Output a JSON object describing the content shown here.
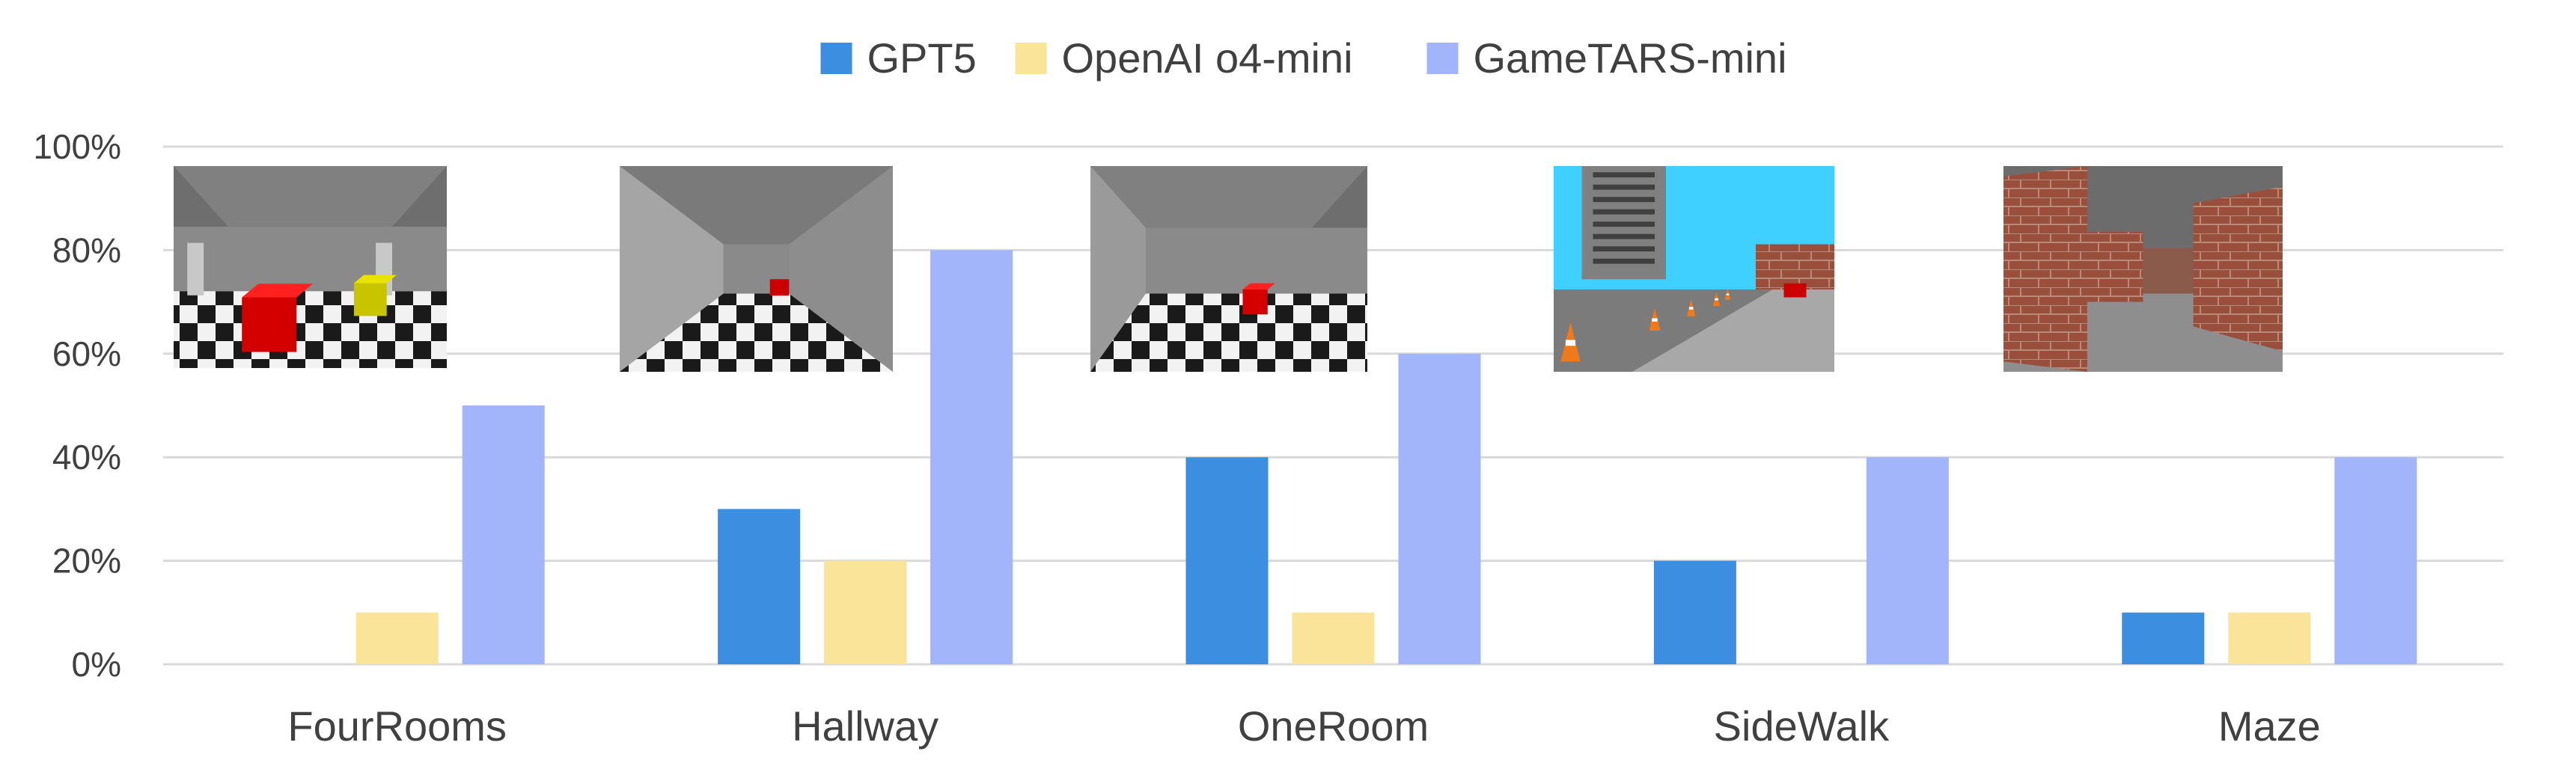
{
  "chart_data": {
    "type": "bar",
    "title": "",
    "xlabel": "",
    "ylabel": "",
    "categories": [
      "FourRooms",
      "Hallway",
      "OneRoom",
      "SideWalk",
      "Maze"
    ],
    "series": [
      {
        "name": "GPT5",
        "values": [
          0,
          30,
          40,
          20,
          10
        ],
        "color": "#3b8ee0"
      },
      {
        "name": "OpenAI o4-mini",
        "values": [
          10,
          20,
          10,
          0,
          10
        ],
        "color": "#f9e49a"
      },
      {
        "name": "GameTARS-mini",
        "values": [
          50,
          80,
          60,
          40,
          40
        ],
        "color": "#a2b5fb"
      }
    ],
    "ylim": [
      0,
      100
    ],
    "yticks": [
      0,
      20,
      40,
      60,
      80,
      100
    ],
    "ytick_labels": [
      "0%",
      "20%",
      "40%",
      "60%",
      "80%",
      "100%"
    ],
    "grid": true,
    "legend_position": "top-center",
    "thumbnails": [
      {
        "category": "FourRooms",
        "scene": "four-rooms",
        "description_icon": "room-scene-icon"
      },
      {
        "category": "Hallway",
        "scene": "hallway",
        "description_icon": "hallway-scene-icon"
      },
      {
        "category": "OneRoom",
        "scene": "one-room",
        "description_icon": "room-scene-icon"
      },
      {
        "category": "SideWalk",
        "scene": "sidewalk",
        "description_icon": "sidewalk-scene-icon"
      },
      {
        "category": "Maze",
        "scene": "maze",
        "description_icon": "maze-scene-icon"
      }
    ],
    "colors": {
      "grid": "#d9d9d9",
      "text": "#404040"
    }
  }
}
